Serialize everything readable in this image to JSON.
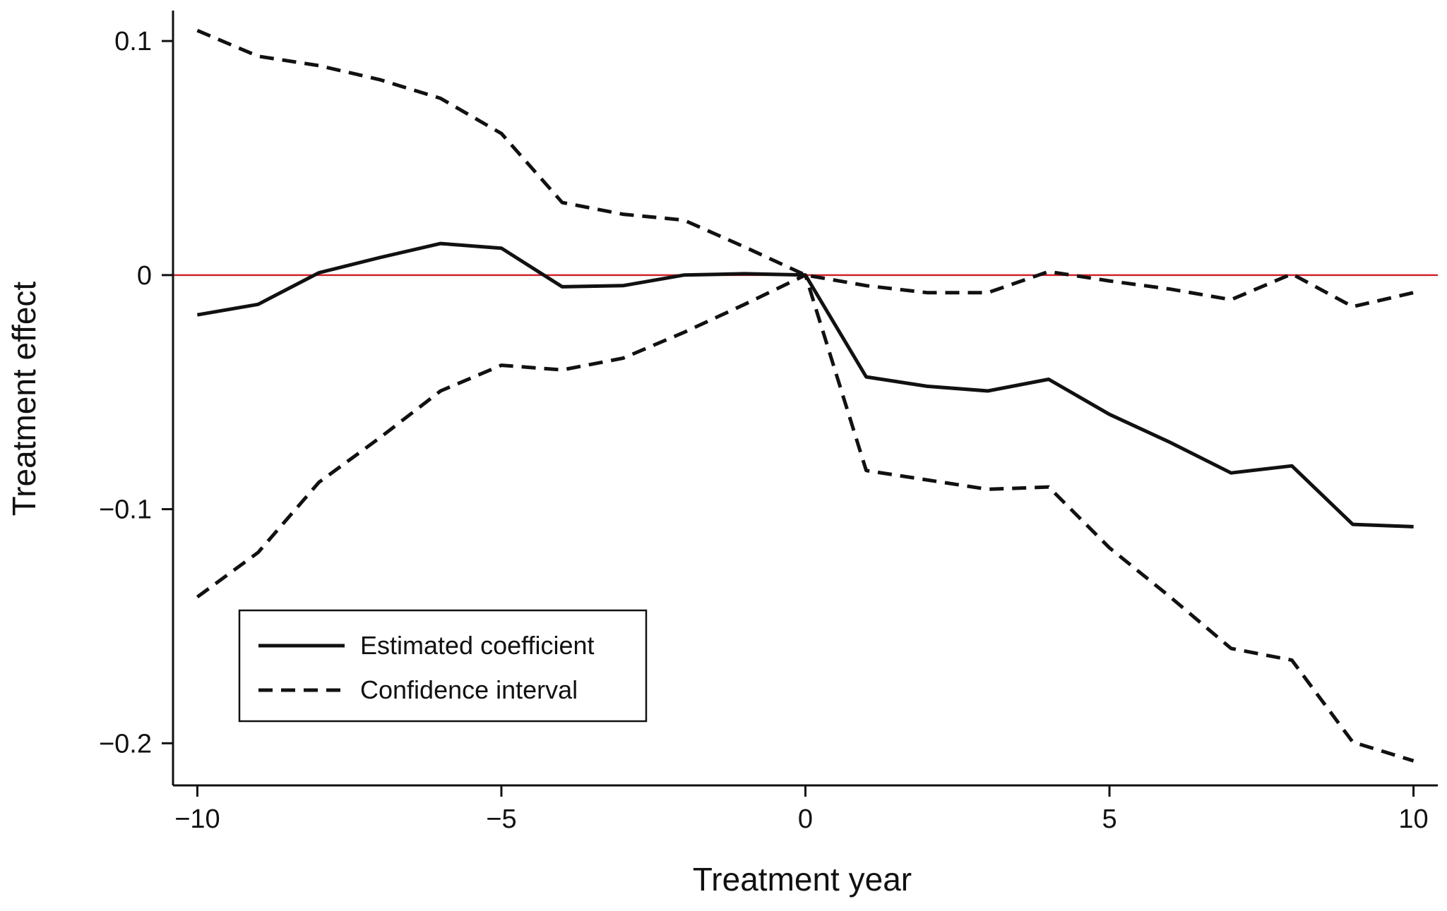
{
  "chart_data": {
    "type": "line",
    "title": "",
    "xlabel": "Treatment year",
    "ylabel": "Treatment effect",
    "xlim": [
      -10.4,
      10.4
    ],
    "ylim": [
      -0.218,
      0.113
    ],
    "x_ticks": [
      -10,
      -5,
      0,
      5,
      10
    ],
    "x_tick_labels": [
      "−10",
      "−5",
      "0",
      "5",
      "10"
    ],
    "y_ticks": [
      0.1,
      0,
      -0.1,
      -0.2
    ],
    "y_tick_labels": [
      "0.1",
      "0",
      "−0.1",
      "−0.2"
    ],
    "grid": false,
    "legend_position": "bottom-left",
    "reference_line": {
      "y": 0,
      "color": "#d0232a"
    },
    "x": [
      -10,
      -9,
      -8,
      -7,
      -6,
      -5,
      -4,
      -3,
      -2,
      -1,
      0,
      1,
      2,
      3,
      4,
      5,
      6,
      7,
      8,
      9,
      10
    ],
    "series": [
      {
        "name": "Estimated coefficient",
        "style": "solid",
        "color": "#111111",
        "values": [
          -0.017,
          -0.0125,
          0.001,
          0.0075,
          0.0135,
          0.0115,
          -0.005,
          -0.0045,
          0.0,
          0.0006,
          0.0,
          -0.0435,
          -0.0475,
          -0.0495,
          -0.0445,
          -0.0595,
          -0.0715,
          -0.0845,
          -0.0815,
          -0.1065,
          -0.1075
        ]
      },
      {
        "name": "Confidence interval (upper)",
        "style": "dashed",
        "color": "#111111",
        "values": [
          0.1045,
          0.0935,
          0.0895,
          0.0835,
          0.0755,
          0.0605,
          0.031,
          0.026,
          0.0235,
          0.012,
          0.0,
          -0.0045,
          -0.0075,
          -0.0075,
          0.0015,
          -0.0025,
          -0.006,
          -0.0105,
          0.0005,
          -0.0135,
          -0.0075
        ]
      },
      {
        "name": "Confidence interval (lower)",
        "style": "dashed",
        "color": "#111111",
        "values": [
          -0.1375,
          -0.1185,
          -0.0885,
          -0.0695,
          -0.0495,
          -0.0385,
          -0.0405,
          -0.0355,
          -0.0245,
          -0.0125,
          0.0,
          -0.0835,
          -0.0875,
          -0.0915,
          -0.0905,
          -0.1165,
          -0.1375,
          -0.1595,
          -0.1645,
          -0.1995,
          -0.2075
        ]
      }
    ],
    "legend": [
      {
        "label": "Estimated coefficient",
        "style": "solid"
      },
      {
        "label": "Confidence interval",
        "style": "dashed"
      }
    ]
  }
}
